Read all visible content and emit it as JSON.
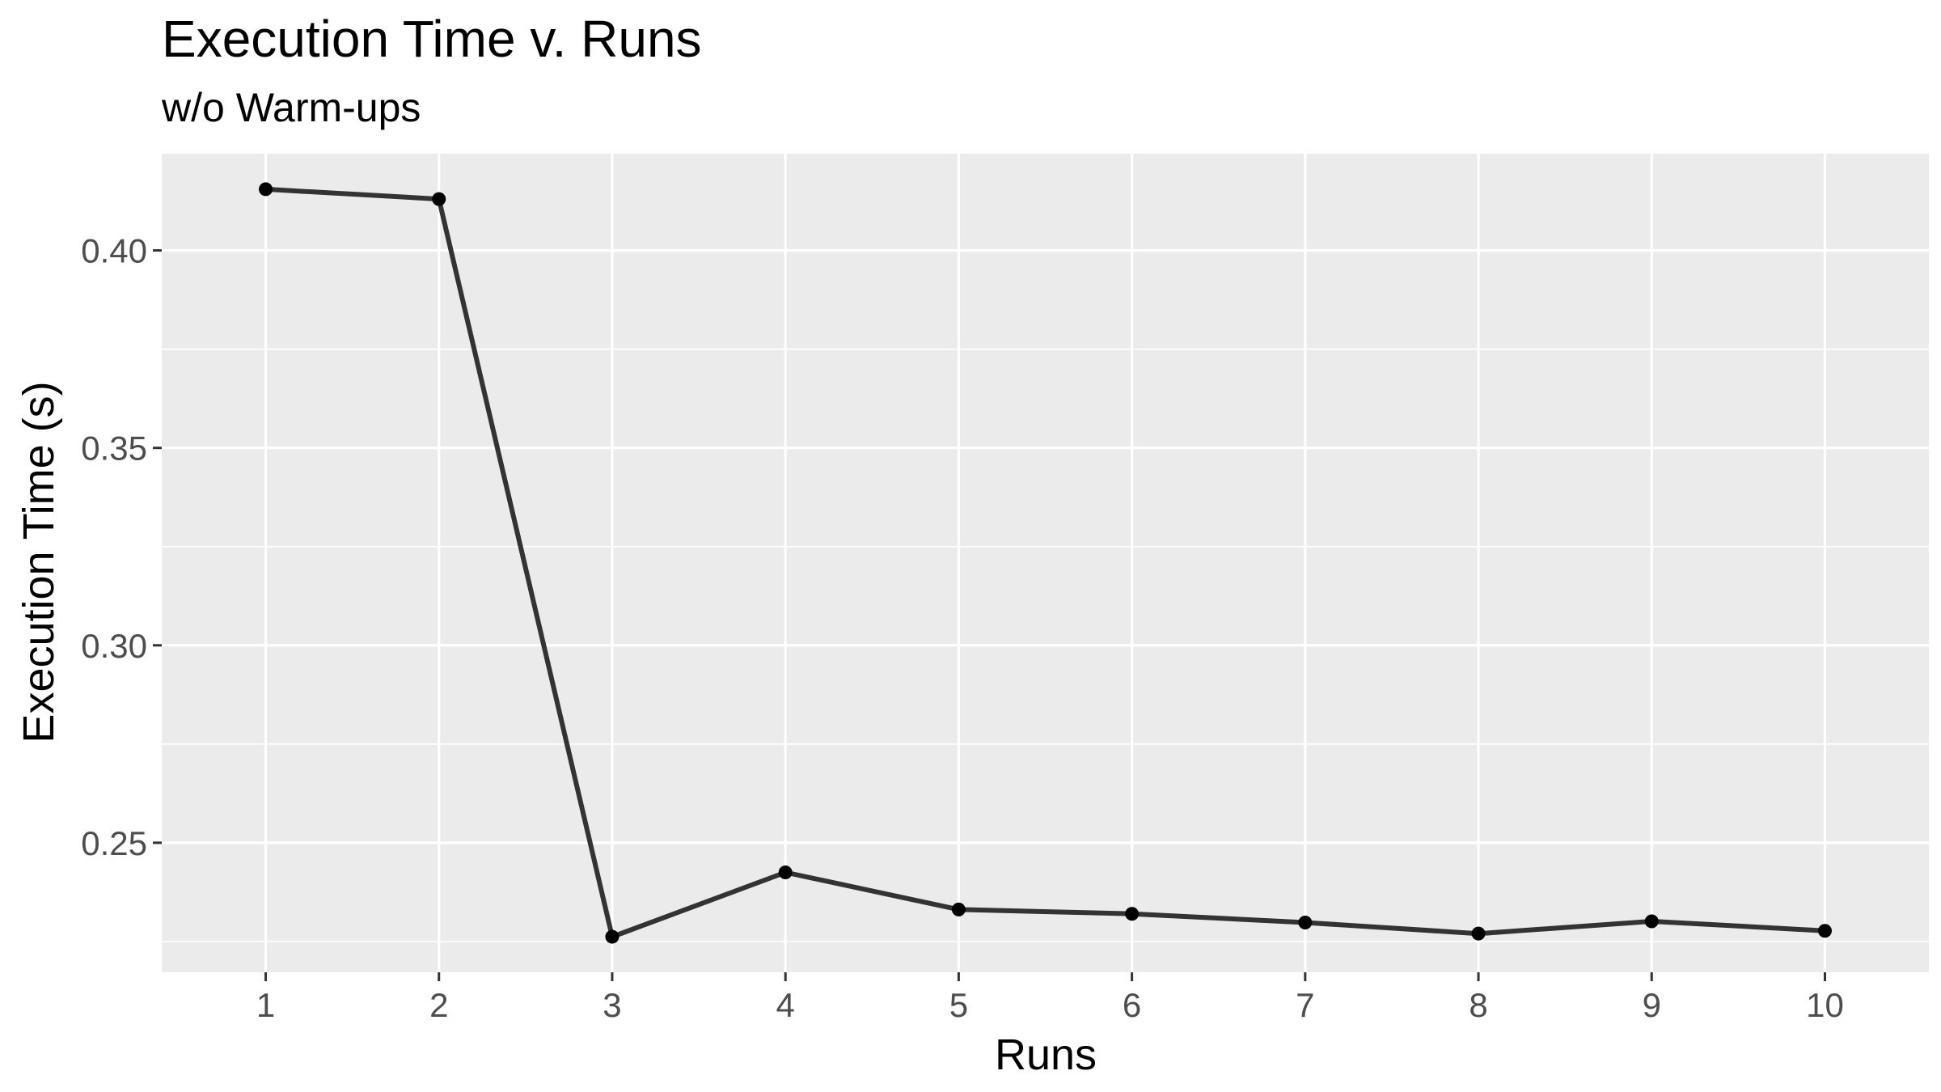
{
  "chart_data": {
    "type": "line",
    "title": "Execution Time v. Runs",
    "subtitle": "w/o Warm-ups",
    "xlabel": "Runs",
    "ylabel": "Execution Time (s)",
    "x": [
      1,
      2,
      3,
      4,
      5,
      6,
      7,
      8,
      9,
      10
    ],
    "y": [
      0.4155,
      0.413,
      0.2262,
      0.2425,
      0.2331,
      0.232,
      0.2298,
      0.227,
      0.2301,
      0.2277
    ],
    "xlim": [
      0.4,
      10.6
    ],
    "ylim": [
      0.2172,
      0.4245
    ],
    "x_ticks": [
      1,
      2,
      3,
      4,
      5,
      6,
      7,
      8,
      9,
      10
    ],
    "x_tick_labels": [
      "1",
      "2",
      "3",
      "4",
      "5",
      "6",
      "7",
      "8",
      "9",
      "10"
    ],
    "y_ticks": [
      0.25,
      0.3,
      0.35,
      0.4
    ],
    "y_tick_labels": [
      "0.25",
      "0.30",
      "0.35",
      "0.40"
    ],
    "y_minor_ticks": [
      0.225,
      0.275,
      0.325,
      0.375
    ],
    "grid": true,
    "legend": "none",
    "colors": {
      "panel_background": "#ebebeb",
      "grid_line": "#ffffff",
      "series_line": "#333333",
      "point": "#000000",
      "tick_mark": "#333333"
    }
  }
}
